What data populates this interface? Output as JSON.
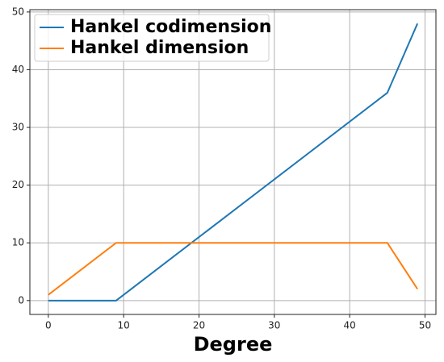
{
  "chart_data": {
    "type": "line",
    "x": [
      0,
      9,
      45,
      49
    ],
    "series": [
      {
        "name": "Hankel codimension",
        "color": "#1f77b4",
        "values": [
          0,
          0,
          36,
          48
        ]
      },
      {
        "name": "Hankel dimension",
        "color": "#ff7f0e",
        "values": [
          1,
          10,
          10,
          2
        ]
      }
    ],
    "x_label": "Degree",
    "xlim": [
      -2.45,
      51.45
    ],
    "xticks": [
      0,
      10,
      20,
      30,
      40,
      50
    ],
    "ylim": [
      -2.4,
      50.4
    ],
    "yticks": [
      0,
      10,
      20,
      30,
      40,
      50
    ],
    "grid": true,
    "legend": "upper left"
  }
}
